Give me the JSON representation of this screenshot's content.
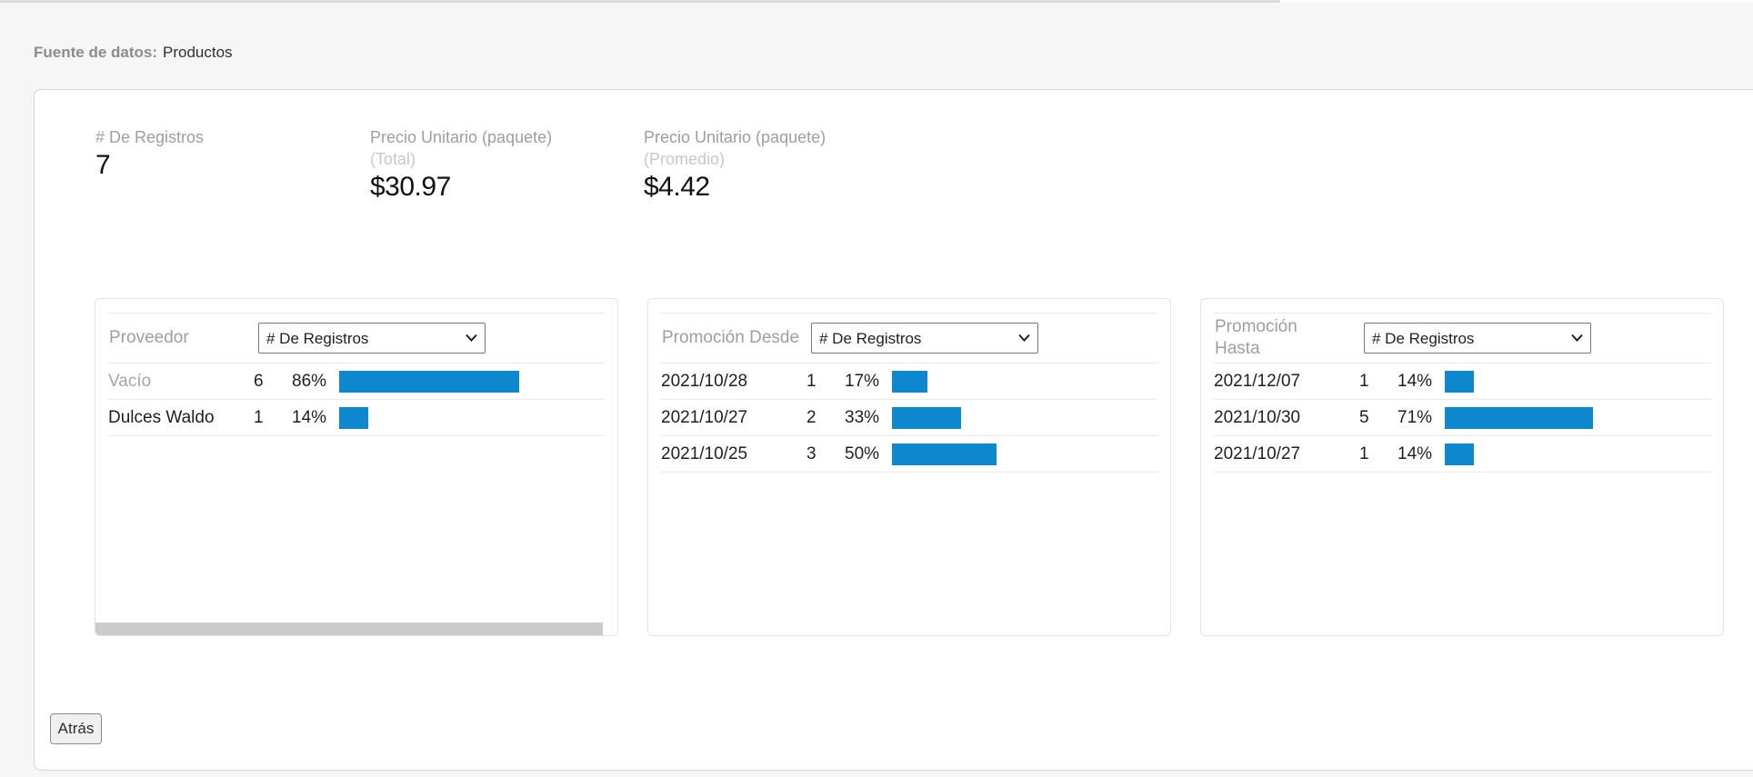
{
  "header": {
    "source_label": "Fuente de datos:",
    "source_value": "Productos"
  },
  "stats": [
    {
      "label": "# De Registros",
      "sublabel": "",
      "value": "7"
    },
    {
      "label": "Precio Unitario (paquete)",
      "sublabel": "(Total)",
      "value": "$30.97"
    },
    {
      "label": "Precio Unitario (paquete)",
      "sublabel": "(Promedio)",
      "value": "$4.42"
    }
  ],
  "panels": [
    {
      "title": "Proveedor",
      "metric": "# De Registros",
      "rows": [
        {
          "label": "Vacío",
          "count": "6",
          "percent": "86%",
          "percent_value": 86,
          "muted": true
        },
        {
          "label": "Dulces Waldo",
          "count": "1",
          "percent": "14%",
          "percent_value": 14,
          "muted": false
        }
      ]
    },
    {
      "title": "Promoción Desde",
      "metric": "# De Registros",
      "rows": [
        {
          "label": "2021/10/28",
          "count": "1",
          "percent": "17%",
          "percent_value": 17,
          "muted": false
        },
        {
          "label": "2021/10/27",
          "count": "2",
          "percent": "33%",
          "percent_value": 33,
          "muted": false
        },
        {
          "label": "2021/10/25",
          "count": "3",
          "percent": "50%",
          "percent_value": 50,
          "muted": false
        }
      ]
    },
    {
      "title": "Promoción\nHasta",
      "metric": "# De Registros",
      "rows": [
        {
          "label": "2021/12/07",
          "count": "1",
          "percent": "14%",
          "percent_value": 14,
          "muted": false
        },
        {
          "label": "2021/10/30",
          "count": "5",
          "percent": "71%",
          "percent_value": 71,
          "muted": false
        },
        {
          "label": "2021/10/27",
          "count": "1",
          "percent": "14%",
          "percent_value": 14,
          "muted": false
        }
      ]
    }
  ],
  "footer": {
    "back_label": "Atrás"
  },
  "colors": {
    "bar_blue": "#0d87cd",
    "muted_label": "#a6a6a6",
    "panel_title_gray": "#9e9e9e"
  }
}
